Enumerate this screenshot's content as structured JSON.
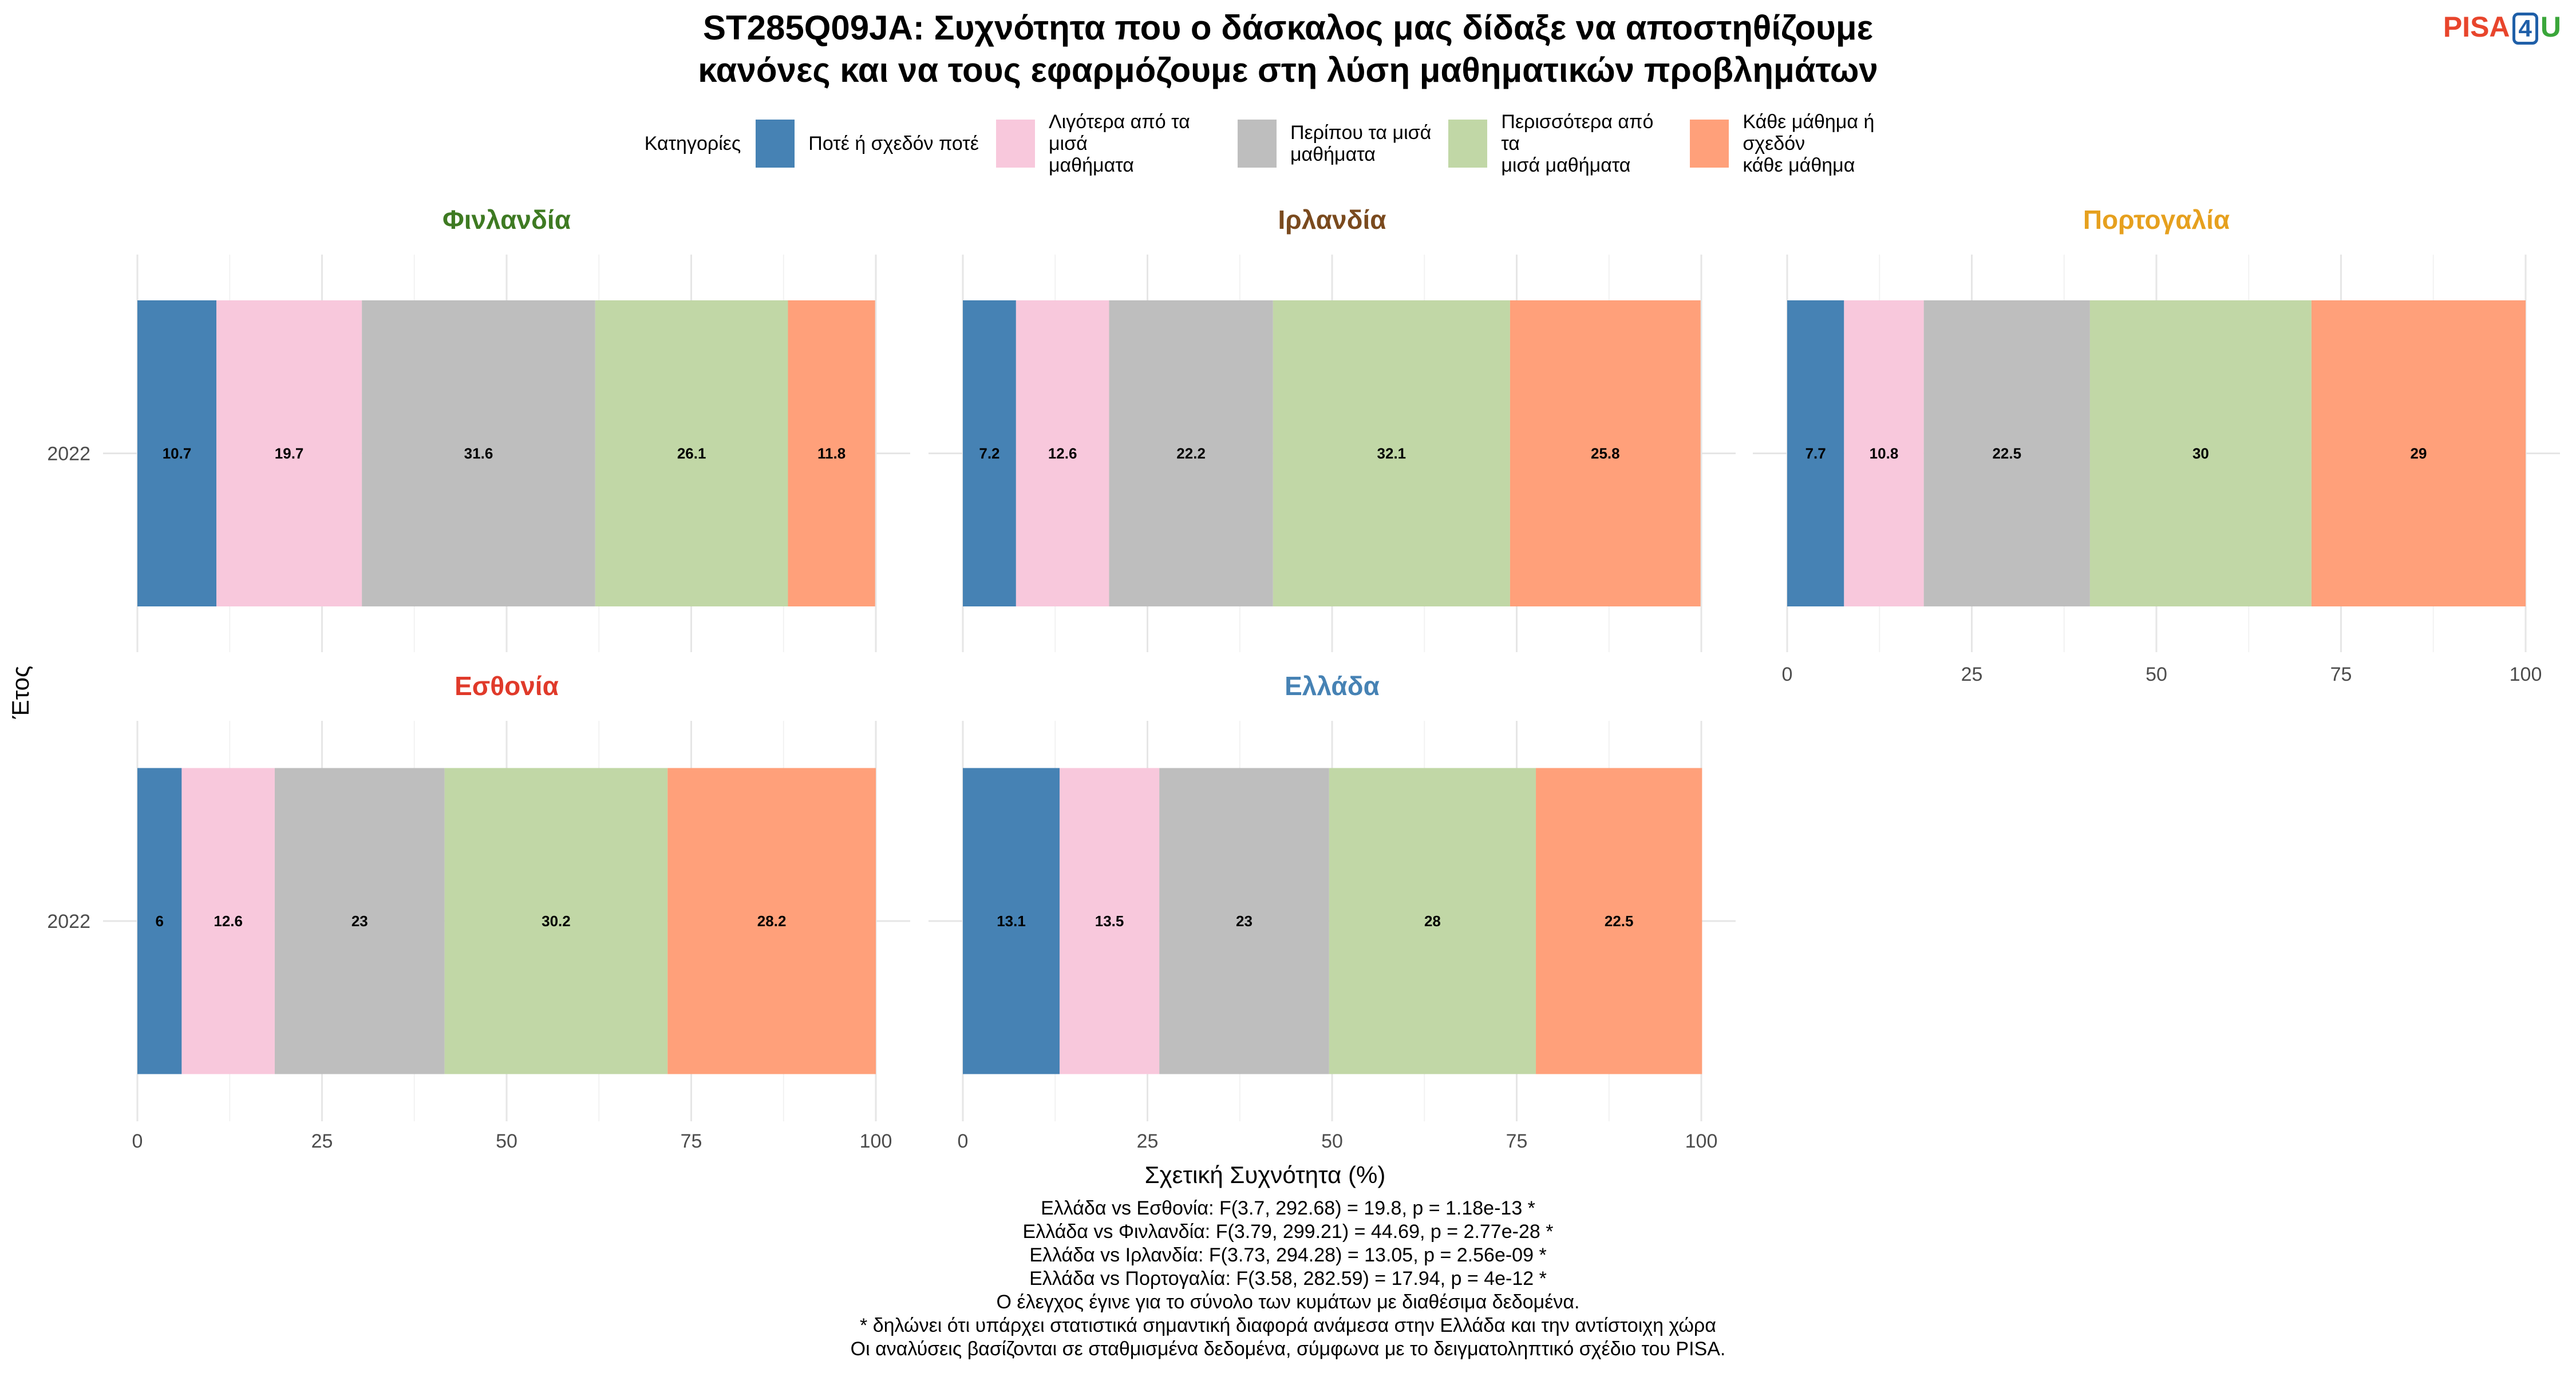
{
  "title_lines": [
    "ST285Q09JA: Συχνότητα που ο δάσκαλος μας δίδαξε να αποστηθίζουμε",
    "κανόνες και να τους εφαρμόζουμε στη λύση μαθηματικών προβλημάτων"
  ],
  "logo": {
    "pisa": "PISA",
    "num": "4",
    "u": "U"
  },
  "legend": {
    "title": "Κατηγορίες",
    "items": [
      {
        "label": "Ποτέ ή σχεδόν ποτέ",
        "color": "#4682b4"
      },
      {
        "label": "Λιγότερα από τα μισά\nμαθήματα",
        "color": "#f8c8dc"
      },
      {
        "label": "Περίπου τα μισά\nμαθήματα",
        "color": "#bebebe"
      },
      {
        "label": "Περισσότερα από τα\nμισά μαθήματα",
        "color": "#c1d7a6"
      },
      {
        "label": "Κάθε μάθημα ή σχεδόν\nκάθε μάθημα",
        "color": "#ffa07a"
      }
    ]
  },
  "chart_data": {
    "type": "bar",
    "orientation": "horizontal-stacked",
    "xlabel": "Σχετική Συχνότητα (%)",
    "ylabel": "Έτος",
    "xlim": [
      0,
      100
    ],
    "xticks": [
      0,
      25,
      50,
      75,
      100
    ],
    "categories": [
      "2022"
    ],
    "facets": [
      {
        "name": "Φινλανδία",
        "color": "#3e7a22",
        "values": [
          10.7,
          19.7,
          31.6,
          26.1,
          11.8
        ]
      },
      {
        "name": "Ιρλανδία",
        "color": "#7a4a1e",
        "values": [
          7.2,
          12.6,
          22.2,
          32.1,
          25.8
        ]
      },
      {
        "name": "Πορτογαλία",
        "color": "#e6a01e",
        "values": [
          7.7,
          10.8,
          22.5,
          30,
          29
        ]
      },
      {
        "name": "Εσθονία",
        "color": "#e03a2a",
        "values": [
          6,
          12.6,
          23,
          30.2,
          28.2
        ]
      },
      {
        "name": "Ελλάδα",
        "color": "#4682b4",
        "values": [
          13.1,
          13.5,
          23,
          28,
          22.5
        ]
      }
    ],
    "grid": true
  },
  "footer_lines": [
    "Ελλάδα vs Εσθονία: F(3.7, 292.68) = 19.8, p = 1.18e-13 *",
    "Ελλάδα vs Φινλανδία: F(3.79, 299.21) = 44.69, p = 2.77e-28 *",
    "Ελλάδα vs Ιρλανδία: F(3.73, 294.28) = 13.05, p = 2.56e-09 *",
    "Ελλάδα vs Πορτογαλία: F(3.58, 282.59) = 17.94, p = 4e-12 *",
    "Ο έλεγχος έγινε για το σύνολο των κυμάτων με διαθέσιμα δεδομένα.",
    "* δηλώνει ότι υπάρχει στατιστικά σημαντική διαφορά ανάμεσα στην Ελλάδα και την αντίστοιχη χώρα",
    "Οι αναλύσεις βασίζονται σε σταθμισμένα δεδομένα, σύμφωνα με το δειγματοληπτικό σχέδιο του PISA."
  ]
}
